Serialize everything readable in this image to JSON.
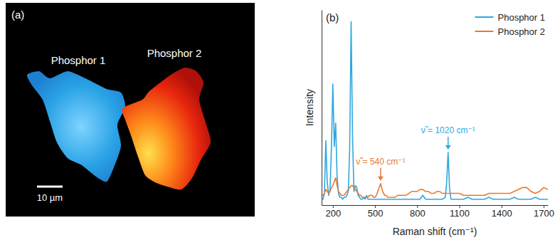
{
  "panel_a": {
    "title": "(a)",
    "labels": [
      "Phosphor 1",
      "Phosphor 2"
    ],
    "scale_bar": "10 µm"
  },
  "chart_data": {
    "type": "line",
    "title": "(b)",
    "x_label": "Raman shift (cm⁻¹)",
    "y_label": "Intensity",
    "x": [
      120,
      130,
      140,
      150,
      160,
      170,
      180,
      190,
      200,
      210,
      220,
      230,
      240,
      250,
      260,
      270,
      280,
      290,
      300,
      310,
      320,
      330,
      340,
      350,
      360,
      370,
      380,
      390,
      400,
      410,
      420,
      430,
      440,
      450,
      460,
      470,
      480,
      490,
      500,
      510,
      520,
      530,
      540,
      550,
      560,
      570,
      580,
      590,
      600,
      620,
      640,
      660,
      680,
      700,
      720,
      740,
      760,
      780,
      800,
      820,
      840,
      860,
      880,
      900,
      920,
      940,
      960,
      980,
      1000,
      1010,
      1020,
      1030,
      1040,
      1070,
      1100,
      1130,
      1160,
      1190,
      1220,
      1250,
      1280,
      1310,
      1340,
      1370,
      1400,
      1430,
      1460,
      1490,
      1520,
      1550,
      1580,
      1610,
      1640,
      1670,
      1700,
      1730
    ],
    "series": [
      {
        "name": "Phosphor 1",
        "color": "#2ea8df",
        "values": [
          3,
          3,
          6,
          33,
          12,
          5,
          8,
          30,
          62,
          30,
          42,
          15,
          6,
          4,
          4,
          3,
          4,
          4,
          5,
          7,
          30,
          94,
          35,
          7,
          10,
          9,
          5,
          4,
          3,
          3,
          4,
          3,
          5,
          3,
          3,
          3,
          3,
          3,
          3,
          3,
          3,
          3,
          3,
          3,
          3,
          3,
          3,
          3,
          3,
          3,
          3,
          3,
          3,
          3,
          3,
          3,
          3,
          3,
          3,
          3,
          5,
          3,
          3,
          3,
          3,
          3,
          3,
          3,
          4,
          12,
          27,
          9,
          3,
          3,
          3,
          3,
          4,
          3,
          3,
          3,
          3,
          4,
          3,
          3,
          3,
          3,
          3,
          4,
          3,
          3,
          3,
          3,
          4,
          3,
          3,
          3
        ]
      },
      {
        "name": "Phosphor 2",
        "color": "#e87a30",
        "values": [
          5,
          5,
          6,
          8,
          7,
          6,
          7,
          9,
          10,
          12,
          14,
          10,
          7,
          6,
          5,
          5,
          5,
          6,
          7,
          8,
          9,
          10,
          10,
          9,
          8,
          7,
          6,
          5,
          5,
          4,
          4,
          4,
          4,
          4,
          5,
          5,
          5,
          4,
          4,
          5,
          7,
          9,
          11,
          8,
          6,
          5,
          5,
          4,
          4,
          4,
          4,
          5,
          5,
          5,
          5,
          6,
          7,
          7,
          7,
          8,
          8,
          7,
          7,
          6,
          6,
          7,
          7,
          6,
          6,
          6,
          6,
          6,
          6,
          6,
          6,
          5,
          5,
          5,
          5,
          5,
          5,
          6,
          6,
          6,
          6,
          6,
          6,
          7,
          8,
          9,
          9,
          7,
          6,
          7,
          9,
          8
        ]
      }
    ],
    "xlim": [
      120,
      1730
    ],
    "xticks": [
      200,
      500,
      800,
      1100,
      1400,
      1700
    ],
    "ylim": [
      0,
      100
    ],
    "tick_labels": "x",
    "legend": "upper right",
    "annotations": [
      {
        "text": "ν̃ = 540 cm⁻¹",
        "x": 540,
        "color": "#e87a30"
      },
      {
        "text": "ν̃ = 1020 cm⁻¹",
        "x": 1020,
        "color": "#2ea8df"
      }
    ]
  }
}
